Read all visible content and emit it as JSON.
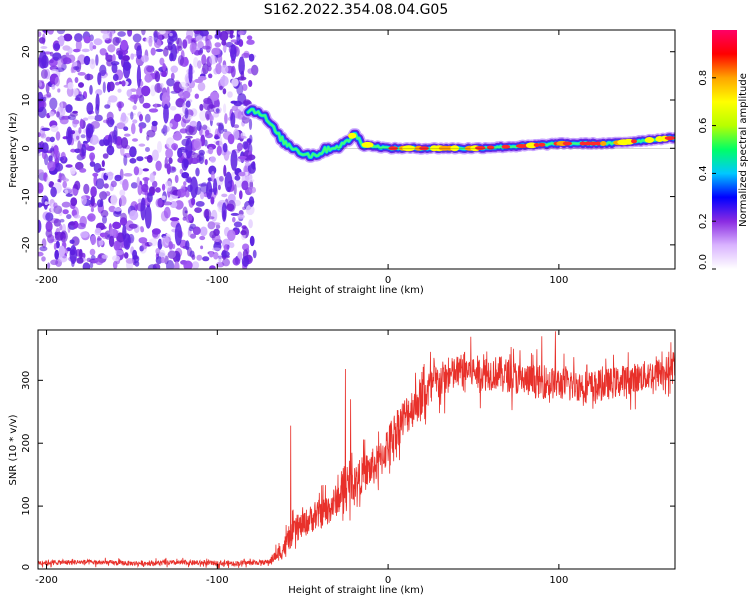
{
  "title": "S162.2022.354.08.04.G05",
  "chart_data": [
    {
      "type": "heatmap",
      "xlabel": "Height of straight line (km)",
      "ylabel": "Frequency (Hz)",
      "xlim": [
        -205,
        168
      ],
      "ylim": [
        -25,
        24.5
      ],
      "x_ticks": [
        -200,
        -100,
        0,
        100
      ],
      "y_ticks": [
        -20,
        -10,
        0,
        10,
        20
      ],
      "noise_region_x": [
        -205,
        -78
      ],
      "ridge": {
        "x": [
          -82,
          -75,
          -70,
          -65,
          -60,
          -55,
          -50,
          -45,
          -40,
          -35,
          -30,
          -25,
          -20,
          -15,
          -10,
          -5,
          0,
          20,
          50,
          80,
          100,
          130,
          168
        ],
        "freq": [
          8,
          7.5,
          5.5,
          3,
          1,
          0,
          -1,
          -1.5,
          -1,
          0,
          0.3,
          1,
          3,
          1,
          0.5,
          0.3,
          0,
          0,
          0,
          0.5,
          1,
          1,
          2.2
        ]
      },
      "colorbar": {
        "label": "Normalized spectral amplitude",
        "range": [
          0,
          1
        ],
        "ticks": [
          "0.0",
          "0.2",
          "0.4",
          "0.6",
          "0.8"
        ],
        "colors": [
          "#ffffff",
          "#d9b3ff",
          "#8a2be2",
          "#0000ff",
          "#00c8ff",
          "#00ff66",
          "#b8ff00",
          "#ffff00",
          "#ffa500",
          "#ff0000",
          "#ff0066"
        ]
      }
    },
    {
      "type": "line",
      "xlabel": "Height of straight line (km)",
      "ylabel": "SNR (10 * v/v)",
      "xlim": [
        -205,
        168
      ],
      "ylim": [
        0,
        380
      ],
      "x_ticks": [
        -200,
        -100,
        0,
        100
      ],
      "y_ticks": [
        0,
        100,
        200,
        300
      ],
      "color": "#e8302a",
      "trend": {
        "x": [
          -205,
          -180,
          -150,
          -120,
          -90,
          -70,
          -62,
          -55,
          -45,
          -35,
          -25,
          -15,
          -5,
          5,
          15,
          25,
          35,
          45,
          55,
          65,
          80,
          100,
          120,
          140,
          168
        ],
        "y": [
          10,
          11,
          9,
          10,
          9,
          11,
          30,
          60,
          80,
          95,
          125,
          150,
          170,
          225,
          260,
          290,
          305,
          318,
          310,
          312,
          300,
          295,
          290,
          300,
          318
        ]
      },
      "noise_amplitude": {
        "x": [
          -205,
          -70,
          -60,
          -40,
          -20,
          0,
          20,
          40,
          168
        ],
        "y": [
          5,
          5,
          22,
          30,
          35,
          40,
          42,
          35,
          30
        ]
      },
      "spikes": [
        {
          "x": -57,
          "y": 228
        },
        {
          "x": -25,
          "y": 318
        },
        {
          "x": -22,
          "y": 270
        },
        {
          "x": 98,
          "y": 378
        },
        {
          "x": 90,
          "y": 370
        }
      ]
    }
  ]
}
